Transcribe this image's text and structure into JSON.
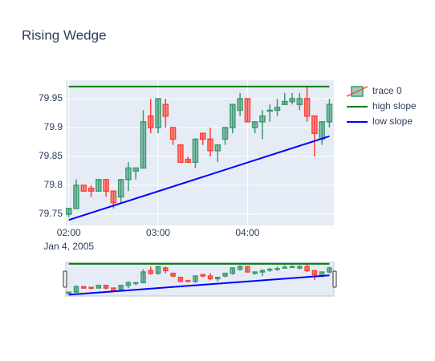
{
  "chart_data": {
    "type": "candlestick",
    "title": "Rising Wedge",
    "x": [
      "2005-01-04 02:00",
      "2005-01-04 02:05",
      "2005-01-04 02:10",
      "2005-01-04 02:15",
      "2005-01-04 02:20",
      "2005-01-04 02:25",
      "2005-01-04 02:30",
      "2005-01-04 02:35",
      "2005-01-04 02:40",
      "2005-01-04 02:45",
      "2005-01-04 02:50",
      "2005-01-04 02:55",
      "2005-01-04 03:00",
      "2005-01-04 03:05",
      "2005-01-04 03:10",
      "2005-01-04 03:15",
      "2005-01-04 03:20",
      "2005-01-04 03:25",
      "2005-01-04 03:30",
      "2005-01-04 03:35",
      "2005-01-04 03:40",
      "2005-01-04 03:45",
      "2005-01-04 03:50",
      "2005-01-04 03:55",
      "2005-01-04 04:00",
      "2005-01-04 04:05",
      "2005-01-04 04:10",
      "2005-01-04 04:15",
      "2005-01-04 04:20",
      "2005-01-04 04:25",
      "2005-01-04 04:30",
      "2005-01-04 04:35",
      "2005-01-04 04:40",
      "2005-01-04 04:45",
      "2005-01-04 04:50",
      "2005-01-04 04:55"
    ],
    "series": [
      {
        "name": "trace 0",
        "increasing_color": "#3d9970",
        "decreasing_color": "#ff4136",
        "open": [
          79.75,
          79.76,
          79.8,
          79.795,
          79.79,
          79.81,
          79.79,
          79.78,
          79.81,
          79.825,
          79.83,
          79.92,
          79.9,
          79.94,
          79.9,
          79.87,
          79.845,
          79.84,
          79.89,
          79.88,
          79.86,
          79.88,
          79.9,
          79.93,
          79.95,
          79.9,
          79.91,
          79.93,
          79.93,
          79.94,
          79.945,
          79.94,
          79.95,
          79.92,
          79.88,
          79.91
        ],
        "high": [
          79.76,
          79.81,
          79.8,
          79.8,
          79.81,
          79.81,
          79.79,
          79.81,
          79.84,
          79.83,
          79.93,
          79.95,
          79.95,
          79.95,
          79.9,
          79.87,
          79.85,
          79.88,
          79.89,
          79.9,
          79.87,
          79.9,
          79.94,
          79.96,
          79.95,
          79.91,
          79.93,
          79.94,
          79.95,
          79.96,
          79.96,
          79.96,
          79.97,
          79.92,
          79.91,
          79.95
        ],
        "low": [
          79.745,
          79.76,
          79.79,
          79.78,
          79.79,
          79.78,
          79.76,
          79.77,
          79.79,
          79.81,
          79.83,
          79.89,
          79.89,
          79.9,
          79.87,
          79.84,
          79.84,
          79.83,
          79.87,
          79.85,
          79.84,
          79.87,
          79.89,
          79.92,
          79.91,
          79.89,
          79.88,
          79.91,
          79.92,
          79.94,
          79.94,
          79.93,
          79.91,
          79.85,
          79.87,
          79.9
        ],
        "close": [
          79.76,
          79.8,
          79.79,
          79.79,
          79.81,
          79.79,
          79.77,
          79.81,
          79.83,
          79.83,
          79.91,
          79.9,
          79.95,
          79.92,
          79.88,
          79.84,
          79.84,
          79.88,
          79.88,
          79.86,
          79.87,
          79.9,
          79.94,
          79.95,
          79.91,
          79.91,
          79.92,
          79.93,
          79.935,
          79.945,
          79.95,
          79.95,
          79.92,
          79.89,
          79.91,
          79.94
        ]
      }
    ],
    "lines": [
      {
        "name": "high slope",
        "color": "#008000",
        "x": [
          "2005-01-04 02:00",
          "2005-01-04 04:55"
        ],
        "values": [
          79.971,
          79.971
        ]
      },
      {
        "name": "low slope",
        "color": "#0000ff",
        "x": [
          "2005-01-04 02:00",
          "2005-01-04 04:55"
        ],
        "values": [
          79.74,
          79.885
        ]
      }
    ],
    "xlim": [
      "2005-01-04 01:58",
      "2005-01-04 04:58"
    ],
    "xticks": [
      {
        "value": "2005-01-04 02:00",
        "label": "02:00"
      },
      {
        "value": "2005-01-04 03:00",
        "label": "03:00"
      },
      {
        "value": "2005-01-04 04:00",
        "label": "04:00"
      }
    ],
    "x_date_label": "Jan 4, 2005",
    "ylim": [
      79.7306,
      79.982
    ],
    "yticks": [
      79.75,
      79.8,
      79.85,
      79.9,
      79.95
    ],
    "grid": true,
    "rangeslider": true,
    "legend": "right"
  }
}
